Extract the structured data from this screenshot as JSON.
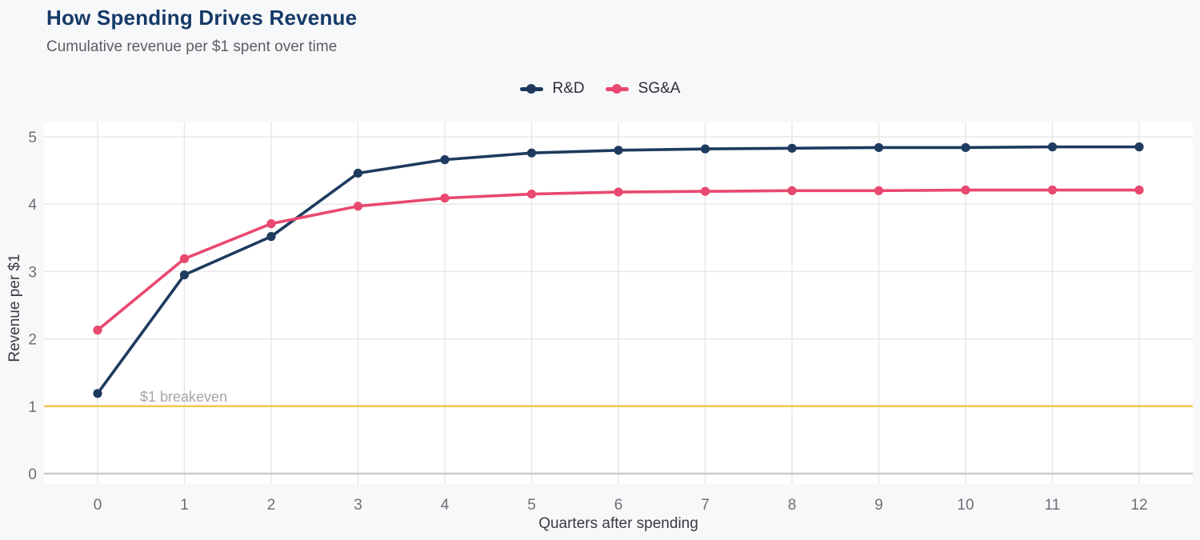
{
  "header": {
    "subtitle": "Cumulative revenue per $1 spent over time"
  },
  "chart_data": {
    "type": "line",
    "title": "How Spending Drives Revenue",
    "xlabel": "Quarters after spending",
    "ylabel": "Revenue per $1",
    "x": [
      0,
      1,
      2,
      3,
      4,
      5,
      6,
      7,
      8,
      9,
      10,
      11,
      12
    ],
    "series": [
      {
        "name": "R&D",
        "color": "#1e3a5f",
        "values": [
          1.19,
          2.95,
          3.52,
          4.46,
          4.66,
          4.76,
          4.8,
          4.82,
          4.83,
          4.84,
          4.84,
          4.85,
          4.85
        ]
      },
      {
        "name": "SG&A",
        "color": "#e9486f",
        "values": [
          2.13,
          3.19,
          3.71,
          3.97,
          4.09,
          4.15,
          4.18,
          4.19,
          4.2,
          4.2,
          4.21,
          4.21,
          4.21
        ]
      }
    ],
    "yticks": [
      0,
      1,
      2,
      3,
      4,
      5
    ],
    "xlim": [
      -0.62,
      12.62
    ],
    "ylim": [
      -0.15,
      5.21
    ],
    "grid": true,
    "legend_position": "top-center",
    "reference_line": {
      "y": 1,
      "color": "#f7c64a"
    },
    "annotation": {
      "text": "$1 breakeven",
      "y": 1.1,
      "color": "#a6a6aa"
    },
    "colors": {
      "background": "#f7f8fa",
      "plot_background": "#ffffff",
      "gridline": "#e8e8ea",
      "zero_line": "#c9cacc",
      "tick_label": "#6f6f73",
      "title": "#163a68"
    }
  }
}
